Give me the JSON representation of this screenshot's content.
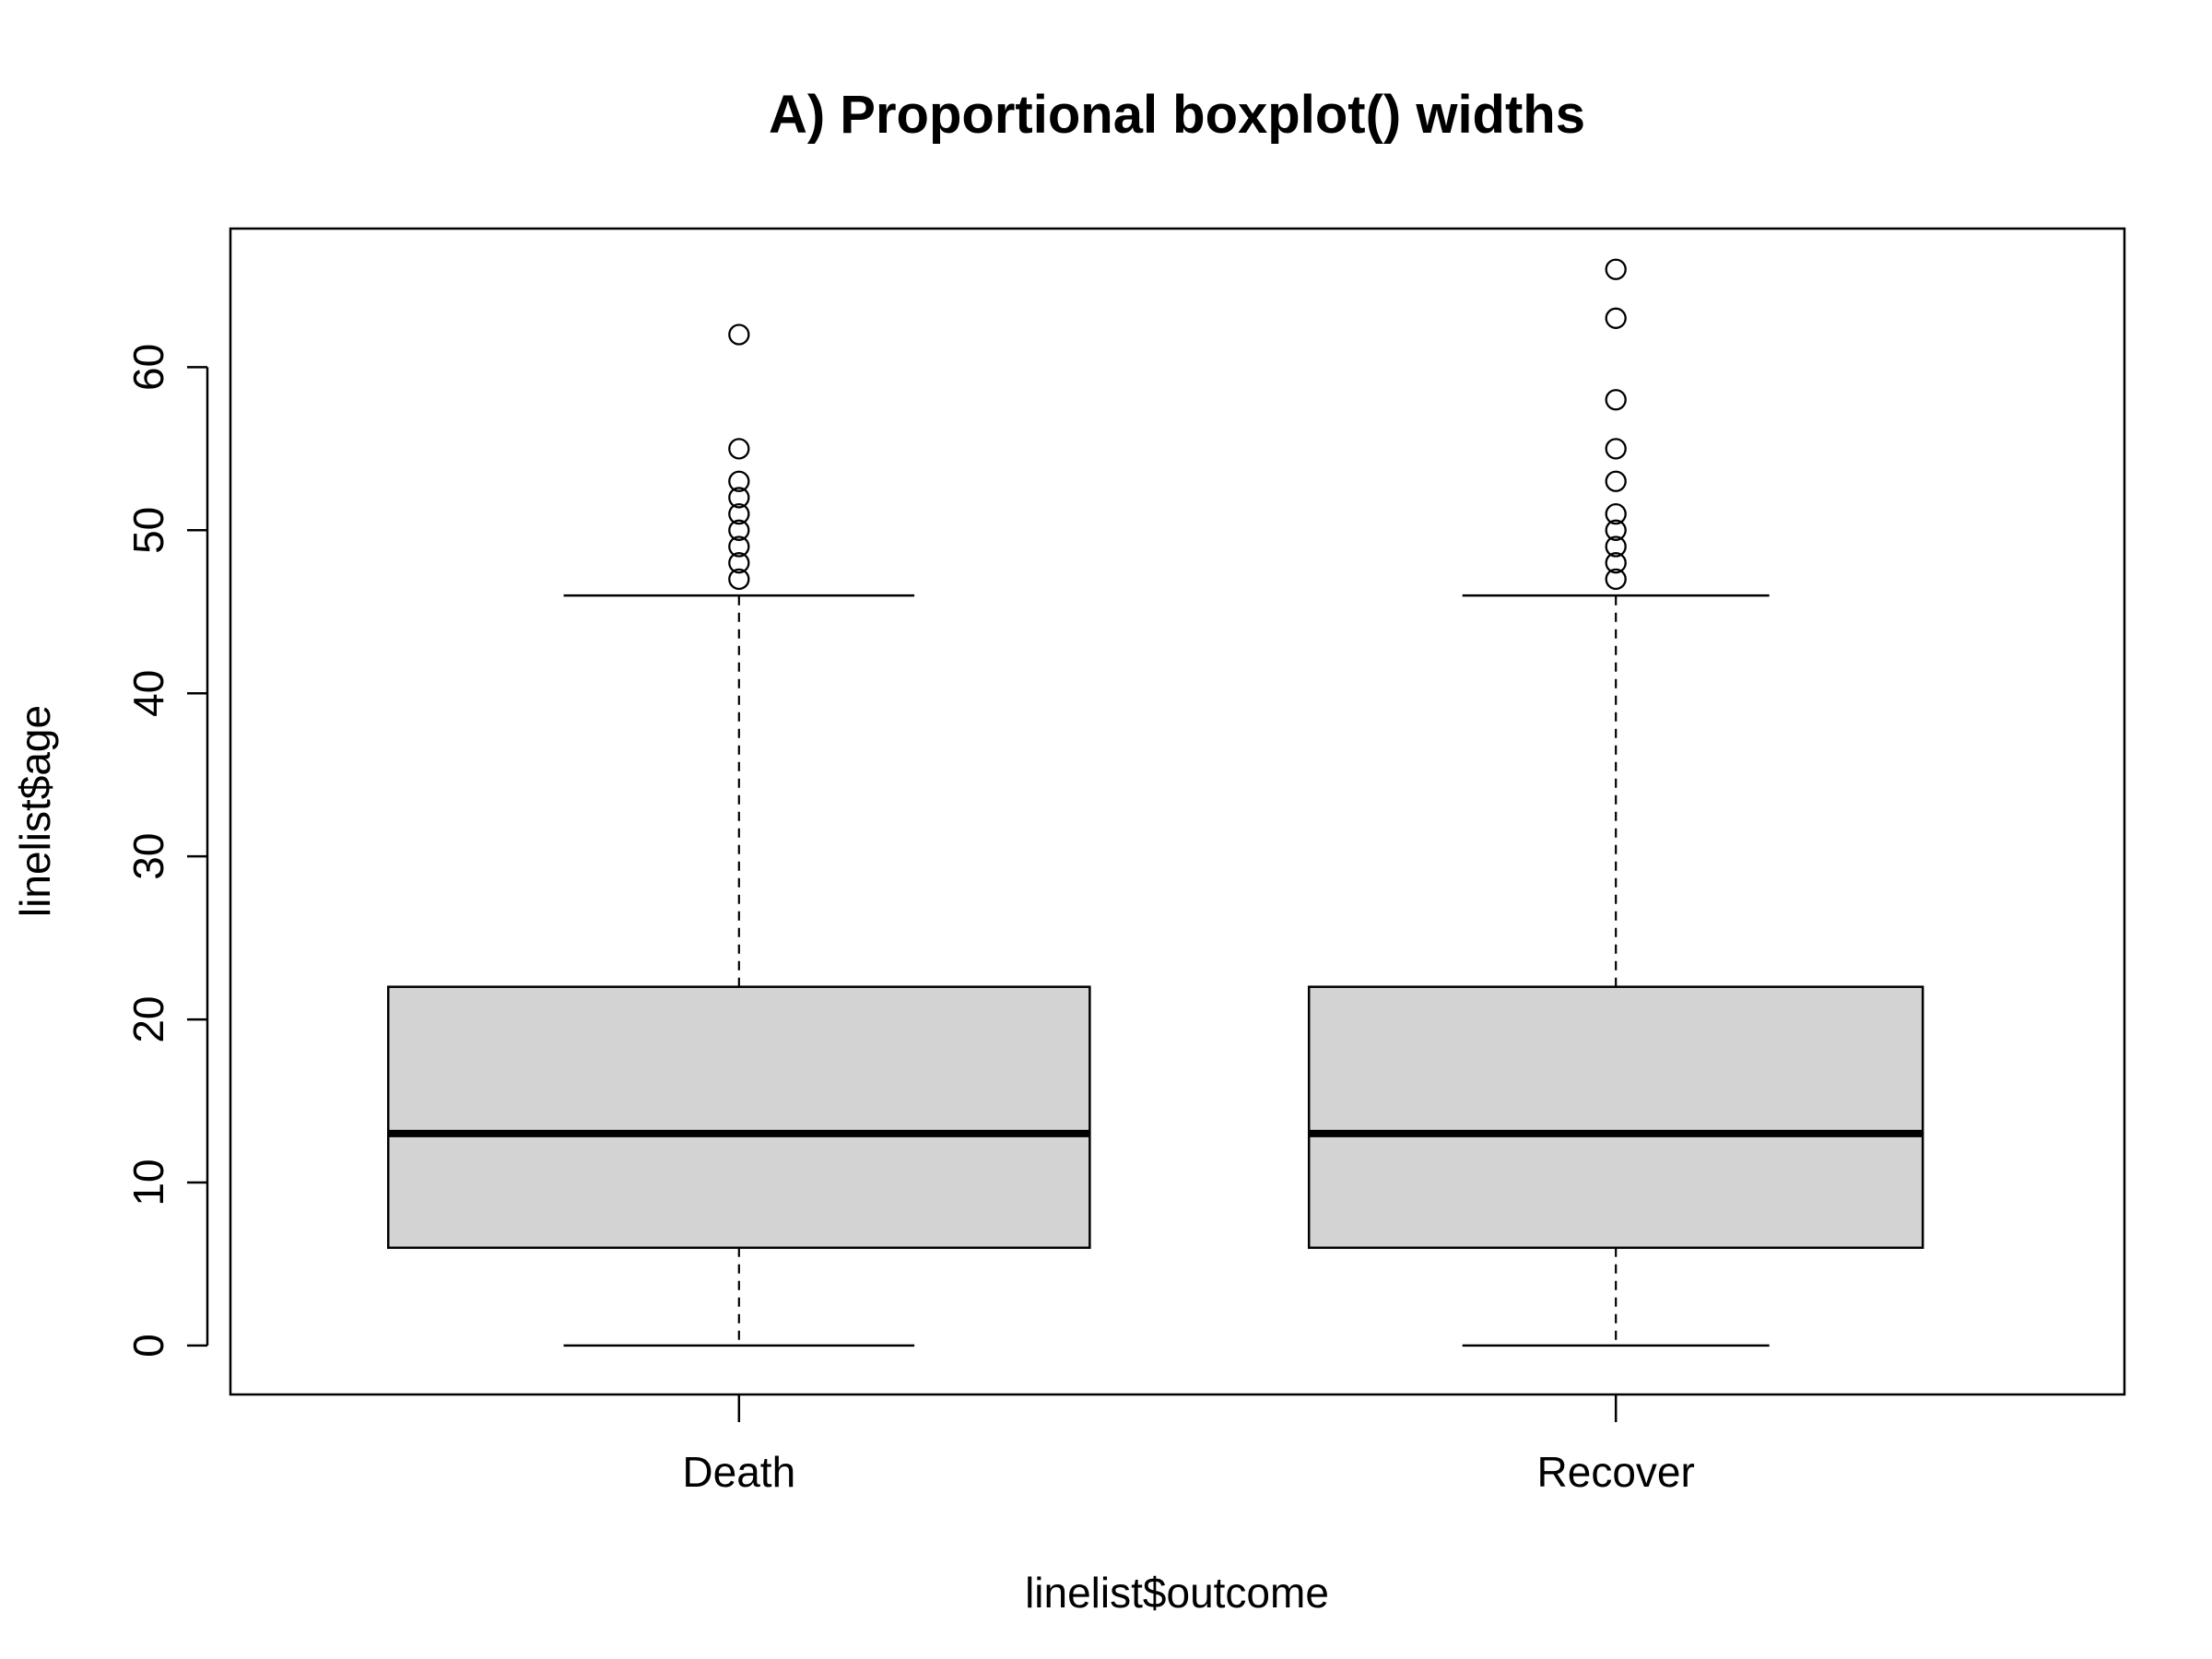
{
  "chart_data": {
    "type": "boxplot",
    "title": "A) Proportional boxplot() widths",
    "xlabel": "linelist$outcome",
    "ylabel": "linelist$age",
    "categories": [
      "Death",
      "Recover"
    ],
    "ylim": [
      -3,
      68.5
    ],
    "yticks": [
      0,
      10,
      20,
      30,
      40,
      50,
      60
    ],
    "grid": false,
    "relative_widths": [
      0.8,
      0.7
    ],
    "box_fill": "#d3d3d3",
    "boxes": [
      {
        "name": "Death",
        "whisker_low": 0,
        "q1": 6,
        "median": 13,
        "q3": 22,
        "whisker_high": 46,
        "outliers": [
          47,
          48,
          49,
          50,
          51,
          52,
          53,
          55,
          62
        ]
      },
      {
        "name": "Recover",
        "whisker_low": 0,
        "q1": 6,
        "median": 13,
        "q3": 22,
        "whisker_high": 46,
        "outliers": [
          47,
          48,
          49,
          50,
          51,
          53,
          55,
          58,
          63,
          66
        ]
      }
    ]
  }
}
